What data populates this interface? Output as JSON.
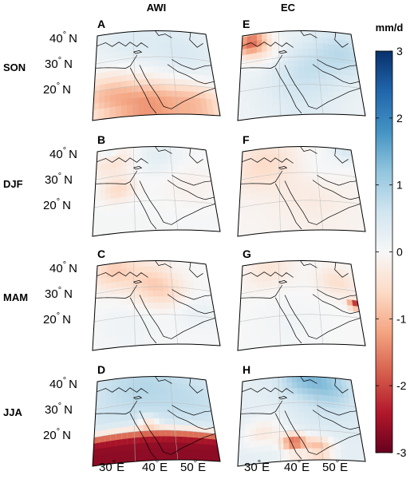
{
  "columns": [
    {
      "key": "awi",
      "label": "AWI"
    },
    {
      "key": "ec",
      "label": "EC"
    }
  ],
  "seasons": [
    {
      "key": "son",
      "label": "SON",
      "panels": [
        "A",
        "E"
      ]
    },
    {
      "key": "djf",
      "label": "DJF",
      "panels": [
        "B",
        "F"
      ]
    },
    {
      "key": "mam",
      "label": "MAM",
      "panels": [
        "C",
        "G"
      ]
    },
    {
      "key": "jja",
      "label": "JJA",
      "panels": [
        "D",
        "H"
      ]
    }
  ],
  "lat_labels": [
    {
      "deg": "40",
      "hemi": "N"
    },
    {
      "deg": "30",
      "hemi": "N"
    },
    {
      "deg": "20",
      "hemi": "N"
    }
  ],
  "lon_labels": [
    {
      "deg": "30",
      "hemi": "E"
    },
    {
      "deg": "40",
      "hemi": "E"
    },
    {
      "deg": "50",
      "hemi": "E"
    }
  ],
  "degree_symbol": "°",
  "colorbar": {
    "unit": "mm/d",
    "min": -3,
    "max": 3,
    "ticks": [
      "3",
      "2",
      "1",
      "0",
      "-1",
      "-2",
      "-3"
    ],
    "colors": [
      "#08306b",
      "#2166ac",
      "#4393c3",
      "#92c5de",
      "#d1e5f0",
      "#f7f7f7",
      "#fddbc7",
      "#f4a582",
      "#d6604d",
      "#b2182b",
      "#67001f"
    ]
  },
  "fields": {
    "A": {
      "base": 0.1,
      "spots": [
        [
          0.1,
          0.78,
          -0.9,
          0.18
        ],
        [
          0.45,
          0.95,
          -1.3,
          0.2
        ],
        [
          0.85,
          0.92,
          -0.9,
          0.17
        ],
        [
          0.75,
          0.3,
          0.35,
          0.25
        ],
        [
          0.25,
          0.15,
          0.25,
          0.2
        ]
      ]
    },
    "E": {
      "base": 0.15,
      "spots": [
        [
          0.08,
          0.15,
          -1.8,
          0.1
        ],
        [
          0.2,
          0.3,
          -0.4,
          0.12
        ],
        [
          0.55,
          0.55,
          0.45,
          0.22
        ],
        [
          0.9,
          0.3,
          0.6,
          0.2
        ],
        [
          0.5,
          0.9,
          0.2,
          0.2
        ]
      ]
    },
    "B": {
      "base": 0.05,
      "spots": [
        [
          0.15,
          0.2,
          -0.5,
          0.14
        ],
        [
          0.2,
          0.55,
          -0.6,
          0.1
        ],
        [
          0.55,
          0.2,
          0.3,
          0.15
        ],
        [
          0.8,
          0.5,
          -0.2,
          0.2
        ],
        [
          0.12,
          0.08,
          0.5,
          0.06
        ]
      ]
    },
    "F": {
      "base": -0.05,
      "spots": [
        [
          0.2,
          0.25,
          -0.5,
          0.2
        ],
        [
          0.6,
          0.7,
          -0.2,
          0.25
        ],
        [
          0.95,
          0.08,
          0.5,
          0.1
        ],
        [
          0.7,
          0.3,
          0.15,
          0.15
        ]
      ]
    },
    "C": {
      "base": 0.0,
      "spots": [
        [
          0.15,
          0.15,
          -0.7,
          0.14
        ],
        [
          0.45,
          0.3,
          -0.5,
          0.16
        ],
        [
          0.6,
          0.45,
          -0.5,
          0.15
        ],
        [
          0.85,
          0.65,
          0.25,
          0.15
        ],
        [
          0.3,
          0.8,
          0.15,
          0.2
        ]
      ]
    },
    "G": {
      "base": 0.0,
      "spots": [
        [
          0.25,
          0.15,
          -0.4,
          0.15
        ],
        [
          0.85,
          0.3,
          -0.5,
          0.12
        ],
        [
          0.98,
          0.55,
          -2.2,
          0.04
        ],
        [
          0.4,
          0.8,
          0.1,
          0.2
        ]
      ]
    },
    "D": {
      "base": 0.5,
      "band": {
        "y0": 0.72,
        "amp": -3.2,
        "width": 0.06
      },
      "spots": [
        [
          0.4,
          0.2,
          0.35,
          0.25
        ],
        [
          0.85,
          0.35,
          0.2,
          0.2
        ],
        [
          0.45,
          0.62,
          -0.8,
          0.06
        ]
      ]
    },
    "H": {
      "base": 0.3,
      "spots": [
        [
          0.55,
          0.08,
          0.8,
          0.15
        ],
        [
          0.8,
          0.15,
          0.6,
          0.15
        ],
        [
          0.2,
          0.7,
          -0.6,
          0.12
        ],
        [
          0.45,
          0.85,
          -2.0,
          0.07
        ],
        [
          0.65,
          0.9,
          -1.2,
          0.08
        ],
        [
          0.75,
          0.4,
          0.3,
          0.2
        ]
      ]
    }
  }
}
